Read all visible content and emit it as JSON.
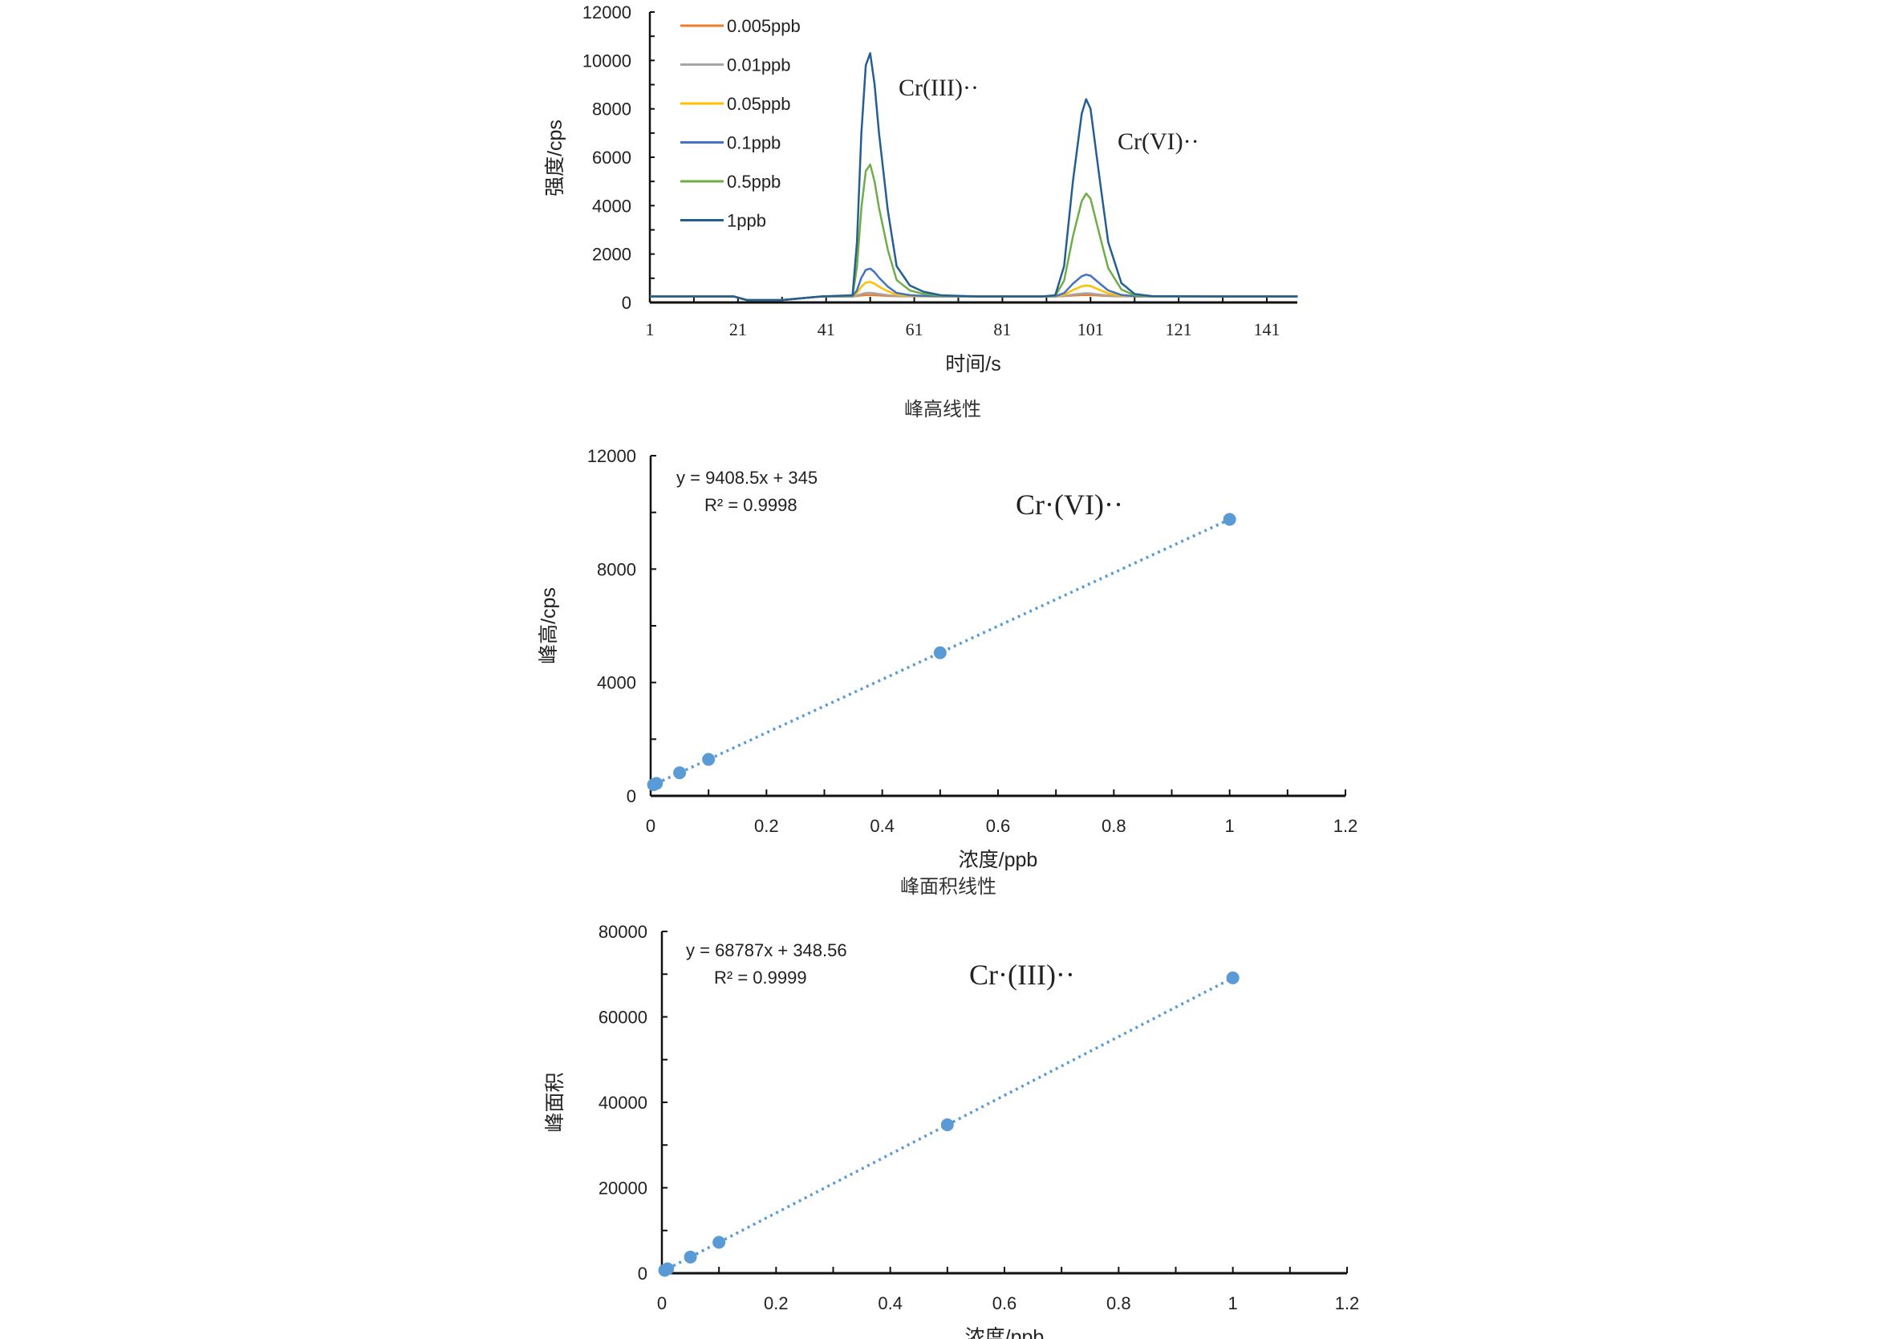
{
  "chart_data": [
    {
      "type": "line",
      "xlabel": "时间/s",
      "ylabel": "强度/cps",
      "xlim": [
        1,
        148
      ],
      "ylim": [
        0,
        12000
      ],
      "xticks": [
        "1",
        "21",
        "41",
        "61",
        "81",
        "101",
        "121",
        "141"
      ],
      "yticks": [
        "0",
        "2000",
        "4000",
        "6000",
        "8000",
        "10000",
        "12000"
      ],
      "legend_position": "top-left",
      "grid": false,
      "annotations": [
        "Cr(III)··",
        "Cr(VI)··"
      ],
      "x": [
        1,
        20,
        23,
        31,
        40,
        47,
        48,
        49,
        50,
        51,
        52,
        53,
        55,
        57,
        60,
        63,
        67,
        75,
        90,
        93,
        95,
        97,
        99,
        100,
        101,
        103,
        105,
        108,
        111,
        115,
        130,
        148
      ],
      "series": [
        {
          "name": "0.005ppb",
          "color": "#ED7D31",
          "values": [
            250,
            250,
            100,
            100,
            250,
            250,
            263,
            290,
            307,
            310,
            302,
            290,
            271,
            257,
            253,
            251,
            250,
            250,
            250,
            250,
            259,
            285,
            306,
            310,
            307,
            286,
            267,
            254,
            251,
            250,
            250,
            250
          ]
        },
        {
          "name": "0.01ppb",
          "color": "#A5A5A5",
          "values": [
            250,
            250,
            100,
            100,
            250,
            251,
            284,
            351,
            393,
            400,
            381,
            351,
            303,
            269,
            257,
            253,
            251,
            250,
            250,
            251,
            270,
            326,
            370,
            380,
            374,
            329,
            286,
            259,
            252,
            250,
            250,
            250
          ]
        },
        {
          "name": "0.05ppb",
          "color": "#FFC000",
          "values": [
            250,
            250,
            100,
            100,
            250,
            253,
            384,
            653,
            820,
            850,
            773,
            653,
            462,
            324,
            277,
            262,
            253,
            250,
            250,
            253,
            319,
            512,
            667,
            700,
            678,
            523,
            374,
            280,
            255,
            250,
            250,
            250
          ]
        },
        {
          "name": "0.1ppb",
          "color": "#4472C4",
          "values": [
            250,
            250,
            100,
            100,
            250,
            256,
            508,
            1023,
            1343,
            1400,
            1252,
            1023,
            656,
            393,
            302,
            273,
            256,
            250,
            250,
            255,
            388,
            775,
            1083,
            1150,
            1106,
            796,
            498,
            310,
            261,
            251,
            250,
            250
          ]
        },
        {
          "name": "0.5ppb",
          "color": "#70AD47",
          "values": [
            250,
            250,
            100,
            100,
            250,
            277,
            1471,
            3912,
            5428,
            5700,
            4997,
            3912,
            2174,
            926,
            495,
            359,
            277,
            250,
            250,
            275,
            900,
            2728,
            4186,
            4500,
            4292,
            2830,
            1423,
            535,
            301,
            254,
            250,
            250
          ]
        },
        {
          "name": "1ppb",
          "color": "#255E91",
          "values": [
            250,
            250,
            100,
            100,
            250,
            300,
            2500,
            7000,
            9800,
            10300,
            9000,
            7000,
            3800,
            1500,
            700,
            450,
            300,
            250,
            250,
            300,
            1500,
            5000,
            7800,
            8400,
            8000,
            5200,
            2500,
            800,
            350,
            260,
            250,
            250
          ]
        }
      ]
    },
    {
      "type": "scatter",
      "title": "峰高线性",
      "xlabel": "浓度/ppb",
      "ylabel": "峰高/cps",
      "xlim": [
        0,
        1.2
      ],
      "ylim": [
        0,
        12000
      ],
      "xticks": [
        "0",
        "0.2",
        "0.4",
        "0.6",
        "0.8",
        "1",
        "1.2"
      ],
      "yticks": [
        "0",
        "4000",
        "8000",
        "12000"
      ],
      "color": "#5B9BD5",
      "x": [
        0.005,
        0.01,
        0.05,
        0.1,
        0.5,
        1
      ],
      "y": [
        392,
        439,
        815,
        1286,
        5049,
        9754
      ],
      "trendline": {
        "slope": 9408.5,
        "intercept": 345,
        "style": "dotted"
      },
      "equation": "y = 9408.5x + 345",
      "r2": "R² = 0.9998",
      "annotation": "Cr·(VI)··"
    },
    {
      "type": "scatter",
      "title": "峰面积线性",
      "xlabel": "浓度/ppb",
      "ylabel": "峰面积",
      "xlim": [
        0,
        1.2
      ],
      "ylim": [
        0,
        80000
      ],
      "xticks": [
        "0",
        "0.2",
        "0.4",
        "0.6",
        "0.8",
        "1",
        "1.2"
      ],
      "yticks": [
        "0",
        "20000",
        "40000",
        "60000",
        "80000"
      ],
      "color": "#5B9BD5",
      "x": [
        0.005,
        0.01,
        0.05,
        0.1,
        0.5,
        1
      ],
      "y": [
        692,
        1036,
        3788,
        7227,
        34742,
        69136
      ],
      "trendline": {
        "slope": 68787,
        "intercept": 348.56,
        "style": "dotted"
      },
      "equation": "y = 68787x + 348.56",
      "r2": "R² = 0.9999",
      "annotation": "Cr·(III)··"
    }
  ]
}
